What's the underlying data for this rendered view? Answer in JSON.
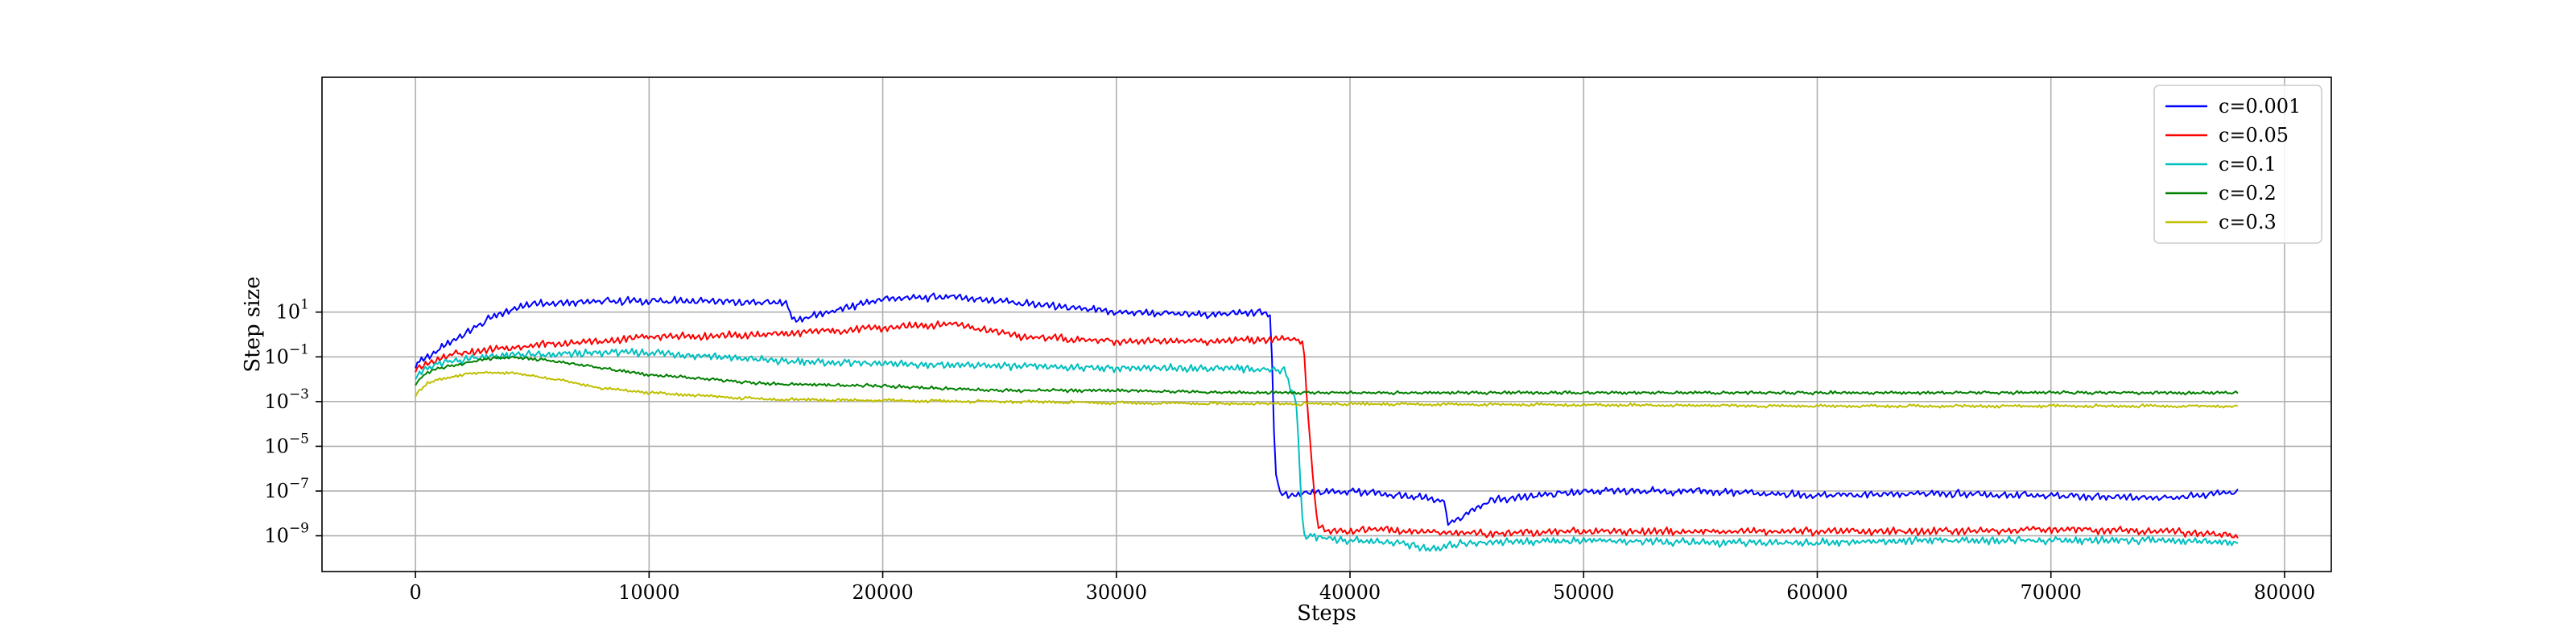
{
  "chart_data": {
    "type": "line",
    "xlabel": "Steps",
    "ylabel": "Step size",
    "x_scale": "linear",
    "y_scale": "log",
    "xlim": [
      -4000,
      82000
    ],
    "ylim_exponent": [
      -10.6,
      11.5
    ],
    "grid": true,
    "legend_position": "top-right",
    "x_ticks": [
      0,
      10000,
      20000,
      30000,
      40000,
      50000,
      60000,
      70000,
      80000
    ],
    "x_tick_labels": [
      "0",
      "10000",
      "20000",
      "30000",
      "40000",
      "50000",
      "60000",
      "70000",
      "80000"
    ],
    "y_ticks_exponent": [
      1,
      -1,
      -3,
      -5,
      -7,
      -9
    ],
    "y_tick_labels": [
      {
        "base": "10",
        "exp": "1"
      },
      {
        "base": "10",
        "exp": "−1"
      },
      {
        "base": "10",
        "exp": "−3"
      },
      {
        "base": "10",
        "exp": "−5"
      },
      {
        "base": "10",
        "exp": "−7"
      },
      {
        "base": "10",
        "exp": "−9"
      }
    ],
    "series": [
      {
        "name": "c=0.001",
        "color": "#0000ff",
        "x": [
          0,
          1000,
          2000,
          3000,
          4000,
          5000,
          8000,
          12000,
          16000,
          16100,
          20000,
          23000,
          26000,
          30000,
          34000,
          36000,
          36600,
          36800,
          37000,
          38000,
          40000,
          44000,
          44200,
          46000,
          50000,
          55000,
          60000,
          65000,
          70000,
          75000,
          78000
        ],
        "y": [
          -1.3,
          -0.7,
          0.0,
          0.6,
          1.1,
          1.4,
          1.5,
          1.5,
          1.4,
          0.6,
          1.6,
          1.7,
          1.4,
          1.0,
          0.9,
          1.0,
          0.9,
          -6.0,
          -7.2,
          -7.1,
          -7.0,
          -7.4,
          -8.5,
          -7.4,
          -7.0,
          -7.0,
          -7.2,
          -7.1,
          -7.2,
          -7.3,
          -7.0
        ]
      },
      {
        "name": "c=0.05",
        "color": "#ff0000",
        "x": [
          0,
          1000,
          2000,
          4000,
          6000,
          8000,
          10000,
          15000,
          20000,
          23000,
          26000,
          30000,
          34000,
          37000,
          38000,
          38300,
          38600,
          39000,
          41000,
          43000,
          45000,
          50000,
          55000,
          60000,
          65000,
          70000,
          75000,
          78000
        ],
        "y": [
          -1.5,
          -1.1,
          -0.8,
          -0.6,
          -0.4,
          -0.3,
          -0.1,
          0.0,
          0.3,
          0.5,
          -0.1,
          -0.3,
          -0.3,
          -0.2,
          -0.3,
          -5.0,
          -8.5,
          -8.8,
          -8.7,
          -8.8,
          -8.9,
          -8.8,
          -8.8,
          -8.8,
          -8.8,
          -8.7,
          -8.8,
          -9.0
        ]
      },
      {
        "name": "c=0.1",
        "color": "#00bfbf",
        "x": [
          0,
          1000,
          2000,
          4000,
          6000,
          8000,
          10000,
          13000,
          16000,
          20000,
          25000,
          30000,
          35000,
          37200,
          37700,
          38000,
          40000,
          42000,
          43500,
          45000,
          50000,
          55000,
          60000,
          65000,
          70000,
          75000,
          78000
        ],
        "y": [
          -1.8,
          -1.3,
          -1.1,
          -0.9,
          -0.9,
          -0.8,
          -0.8,
          -1.0,
          -1.2,
          -1.3,
          -1.4,
          -1.5,
          -1.5,
          -1.6,
          -3.0,
          -9.0,
          -9.2,
          -9.3,
          -9.6,
          -9.3,
          -9.2,
          -9.3,
          -9.3,
          -9.2,
          -9.2,
          -9.2,
          -9.3
        ]
      },
      {
        "name": "c=0.2",
        "color": "#008000",
        "x": [
          0,
          500,
          1000,
          2000,
          3000,
          4000,
          6000,
          8000,
          10000,
          15000,
          20000,
          25000,
          30000,
          35000,
          40000,
          50000,
          60000,
          70000,
          78000
        ],
        "y": [
          -2.2,
          -1.7,
          -1.5,
          -1.3,
          -1.1,
          -1.0,
          -1.2,
          -1.5,
          -1.8,
          -2.2,
          -2.3,
          -2.5,
          -2.5,
          -2.6,
          -2.6,
          -2.6,
          -2.6,
          -2.6,
          -2.6
        ]
      },
      {
        "name": "c=0.3",
        "color": "#bfbf00",
        "x": [
          0,
          500,
          1000,
          2000,
          3000,
          4000,
          6000,
          8000,
          10000,
          15000,
          20000,
          25000,
          30000,
          35000,
          40000,
          50000,
          60000,
          70000,
          78000
        ],
        "y": [
          -2.7,
          -2.2,
          -2.0,
          -1.8,
          -1.7,
          -1.7,
          -2.0,
          -2.4,
          -2.6,
          -2.9,
          -2.95,
          -3.0,
          -3.05,
          -3.1,
          -3.1,
          -3.15,
          -3.2,
          -3.2,
          -3.2
        ]
      }
    ]
  }
}
